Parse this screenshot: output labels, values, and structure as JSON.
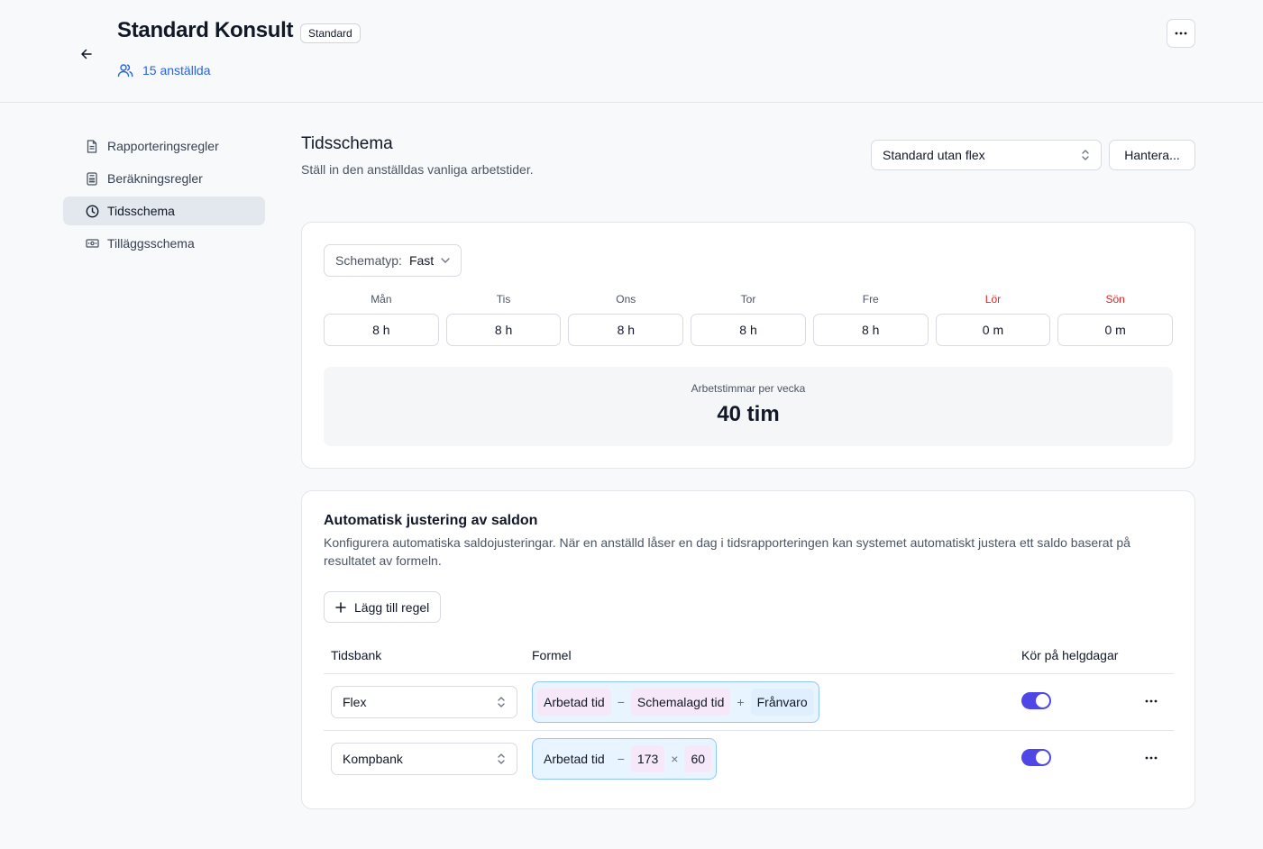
{
  "header": {
    "title": "Standard Konsult",
    "badge": "Standard",
    "employees_link": "15 anställda"
  },
  "sidebar": {
    "items": [
      {
        "label": "Rapporteringsregler",
        "icon": "document-icon",
        "active": false
      },
      {
        "label": "Beräkningsregler",
        "icon": "calculator-icon",
        "active": false
      },
      {
        "label": "Tidsschema",
        "icon": "clock-icon",
        "active": true
      },
      {
        "label": "Tilläggsschema",
        "icon": "banknote-icon",
        "active": false
      }
    ]
  },
  "section": {
    "title": "Tidsschema",
    "subtitle": "Ställ in den anställdas vanliga arbetstider.",
    "schedule_select": "Standard utan flex",
    "manage_button": "Hantera..."
  },
  "schedule_card": {
    "type_label": "Schematyp:",
    "type_value": "Fast",
    "days": [
      {
        "name": "Mån",
        "value": "8 h",
        "weekend": false
      },
      {
        "name": "Tis",
        "value": "8 h",
        "weekend": false
      },
      {
        "name": "Ons",
        "value": "8 h",
        "weekend": false
      },
      {
        "name": "Tor",
        "value": "8 h",
        "weekend": false
      },
      {
        "name": "Fre",
        "value": "8 h",
        "weekend": false
      },
      {
        "name": "Lör",
        "value": "0 m",
        "weekend": true
      },
      {
        "name": "Sön",
        "value": "0 m",
        "weekend": true
      }
    ],
    "total_label": "Arbetstimmar per vecka",
    "total_value": "40 tim"
  },
  "adjust_card": {
    "title": "Automatisk justering av saldon",
    "description": "Konfigurera automatiska saldojusteringar. När en anställd låser en dag i tidsrapporteringen kan systemet automatiskt justera ett saldo baserat på resultatet av formeln.",
    "add_button": "Lägg till regel",
    "columns": {
      "bank": "Tidsbank",
      "formula": "Formel",
      "holidays": "Kör på helgdagar"
    },
    "rows": [
      {
        "bank": "Flex",
        "formula": [
          "Arbetad tid",
          "−",
          "Schemalagd tid",
          "+",
          "Frånvaro"
        ],
        "run_on_holidays": true
      },
      {
        "bank": "Kompbank",
        "formula": [
          "Arbetad tid",
          "−",
          "173",
          "×",
          "60"
        ],
        "run_on_holidays": true
      }
    ]
  },
  "colors": {
    "accent": "#4f46e5",
    "link": "#2563eb",
    "weekend": "#dc2626",
    "formula_bg": "#e8f4ff",
    "formula_border": "#93c5fd"
  }
}
